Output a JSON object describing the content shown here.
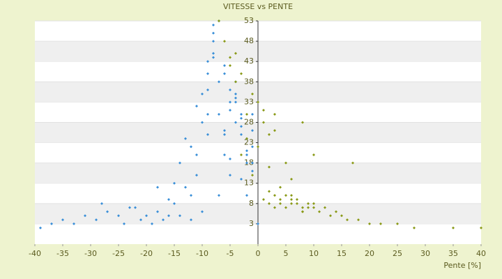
{
  "chart_data": {
    "type": "scatter",
    "title": "VITESSE vs PENTE",
    "x_label": "Pente [%]",
    "xlim": [
      -40,
      40
    ],
    "xticks": [
      -40,
      -35,
      -30,
      -25,
      -20,
      -15,
      -10,
      -5,
      0,
      5,
      10,
      15,
      20,
      25,
      30,
      35,
      40
    ],
    "ylim": [
      -2,
      53
    ],
    "yticks": [
      3,
      8,
      13,
      18,
      23,
      28,
      33,
      38,
      43,
      48,
      53
    ],
    "grid": true,
    "series": [
      {
        "color": "#3a8fd8",
        "x": [
          -39,
          -37,
          -35,
          -33,
          -31,
          -29,
          -27,
          -25,
          -24,
          -22,
          -21,
          -20,
          -19,
          -18,
          -17,
          -16,
          -15,
          -14,
          -13,
          -12,
          -11,
          -10,
          -9,
          -8,
          -7,
          -6,
          -5,
          -4,
          -3,
          -2,
          -1,
          -9,
          -8,
          -7,
          -6,
          -5,
          -4,
          -3,
          -2,
          -1,
          -10,
          -9,
          -8,
          -7,
          -6,
          -5,
          -4,
          -3,
          -2,
          -1,
          -12,
          -11,
          -10,
          -8,
          -6,
          -5,
          -4,
          -3,
          -2,
          -1,
          -8,
          -7,
          -9,
          -6,
          -5,
          -4,
          -14,
          -15,
          -13,
          -11,
          -12,
          -16,
          -28,
          -23,
          -18,
          -3,
          0,
          -1,
          -2,
          -9
        ],
        "values": [
          2,
          3,
          4,
          3,
          5,
          4,
          6,
          5,
          3,
          7,
          4,
          5,
          3,
          6,
          4,
          5,
          8,
          5,
          12,
          4,
          20,
          6,
          30,
          48,
          10,
          40,
          15,
          35,
          25,
          20,
          22,
          25,
          45,
          38,
          42,
          33,
          28,
          30,
          18,
          26,
          35,
          40,
          52,
          30,
          20,
          36,
          33,
          27,
          24,
          30,
          22,
          15,
          28,
          44,
          25,
          31,
          38,
          29,
          21,
          16,
          50,
          53,
          43,
          26,
          19,
          34,
          18,
          13,
          24,
          32,
          10,
          9,
          8,
          7,
          12,
          14,
          3,
          18,
          10,
          36
        ]
      },
      {
        "color": "#8a9a18",
        "x": [
          1,
          2,
          3,
          4,
          5,
          6,
          7,
          8,
          9,
          10,
          11,
          12,
          13,
          14,
          15,
          16,
          18,
          20,
          22,
          25,
          28,
          35,
          40,
          2,
          3,
          4,
          5,
          6,
          7,
          8,
          9,
          10,
          4,
          6,
          8,
          1,
          2,
          3,
          0,
          -1,
          -2,
          -3,
          -4,
          -5,
          -6,
          -7,
          -3,
          -2,
          1,
          3,
          5,
          8,
          10,
          0,
          -1,
          -4,
          -5,
          2,
          6,
          17
        ],
        "values": [
          9,
          8,
          7,
          8,
          7,
          9,
          8,
          6,
          7,
          8,
          6,
          7,
          5,
          6,
          5,
          4,
          4,
          3,
          3,
          3,
          2,
          2,
          2,
          11,
          10,
          9,
          10,
          8,
          9,
          7,
          8,
          7,
          12,
          10,
          6,
          28,
          25,
          30,
          33,
          35,
          30,
          40,
          45,
          42,
          48,
          53,
          20,
          24,
          31,
          26,
          18,
          28,
          20,
          22,
          15,
          38,
          44,
          17,
          14,
          18
        ]
      }
    ]
  }
}
